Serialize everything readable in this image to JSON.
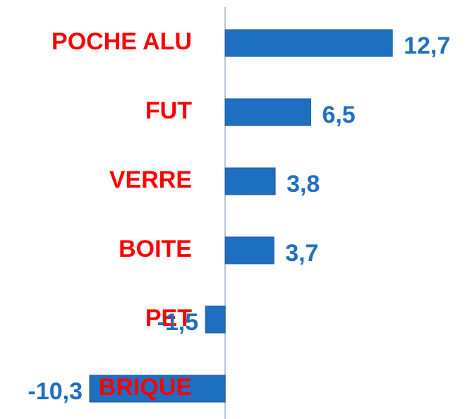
{
  "chart_data": {
    "type": "bar",
    "orientation": "horizontal",
    "categories": [
      "POCHE ALU",
      "FUT",
      "VERRE",
      "BOITE",
      "PET",
      "BRIQUE"
    ],
    "values": [
      12.7,
      6.5,
      3.8,
      3.7,
      -1.5,
      -10.3
    ],
    "value_labels": [
      "12,7",
      "6,5",
      "3,8",
      "3,7",
      "-1,5",
      "-10,3"
    ],
    "color": "#1f6fc1",
    "label_color": "#ff0000",
    "value_label_color": "#1f6fc1",
    "xlim": [
      -17,
      18
    ]
  }
}
